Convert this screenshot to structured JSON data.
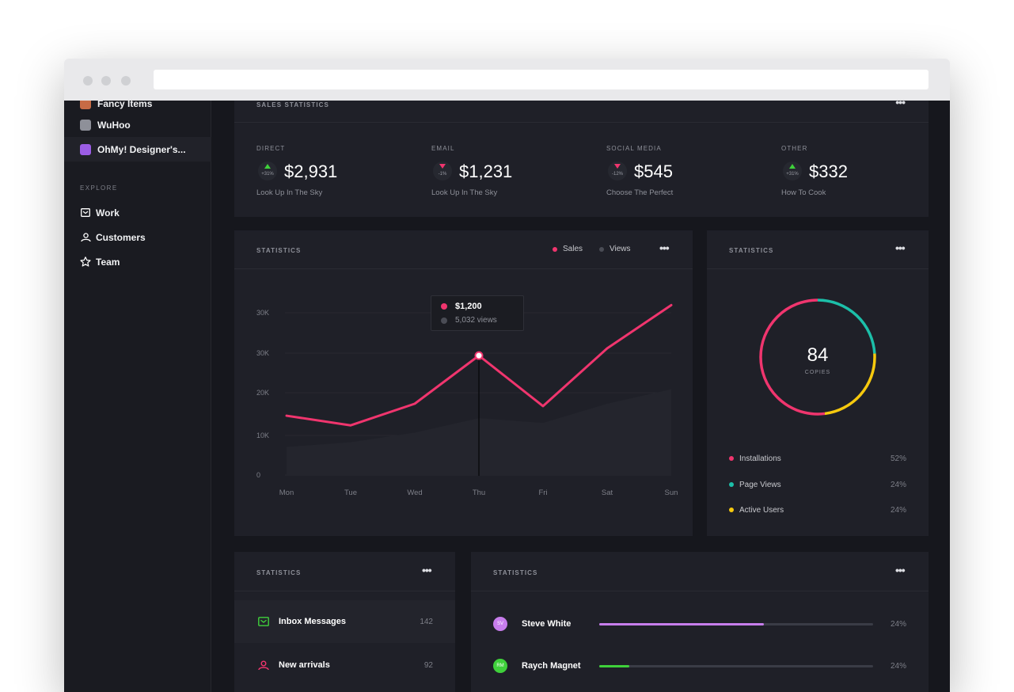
{
  "sidebar": {
    "items": [
      {
        "label": "Fancy Items",
        "logo_color": "#c76b45"
      },
      {
        "label": "WuHoo",
        "logo_color": "#8e9099"
      },
      {
        "label": "OhMy! Designer's...",
        "logo_color": "#9b5de5"
      }
    ],
    "explore_heading": "EXPLORE",
    "nav": [
      {
        "label": "Work",
        "icon": "inbox-icon"
      },
      {
        "label": "Customers",
        "icon": "users-icon"
      },
      {
        "label": "Team",
        "icon": "star-icon"
      }
    ]
  },
  "sales_statistics": {
    "title": "SALES STATISTICS",
    "stats": [
      {
        "label": "DIRECT",
        "change": "+31%",
        "direction": "up",
        "value": "$2,931",
        "sub": "Look Up In The Sky"
      },
      {
        "label": "EMAIL",
        "change": "-1%",
        "direction": "down",
        "value": "$1,231",
        "sub": "Look Up In The Sky"
      },
      {
        "label": "SOCIAL MEDIA",
        "change": "-12%",
        "direction": "down",
        "value": "$545",
        "sub": "Choose The Perfect"
      },
      {
        "label": "OTHER",
        "change": "+31%",
        "direction": "up",
        "value": "$332",
        "sub": "How To Cook"
      }
    ]
  },
  "line_card": {
    "title": "STATISTICS",
    "legend": {
      "sales": "Sales",
      "views": "Views"
    },
    "tooltip": {
      "value": "$1,200",
      "views": "5,032 views"
    }
  },
  "chart_data": {
    "type": "line",
    "categories": [
      "Mon",
      "Tue",
      "Wed",
      "Thu",
      "Fri",
      "Sat",
      "Sun"
    ],
    "y_tick_labels": [
      "30K",
      "30K",
      "20K",
      "10K",
      "0"
    ],
    "series": [
      {
        "name": "Sales",
        "color": "#f0356e",
        "values": [
          12500,
          10500,
          15000,
          25000,
          14500,
          26500,
          35500
        ]
      },
      {
        "name": "Views",
        "color": "#4a4c55",
        "values": [
          6000,
          7000,
          9000,
          12000,
          11000,
          15000,
          18000
        ]
      }
    ],
    "ylim": [
      0,
      40000
    ],
    "highlight_index": 3
  },
  "donut_card": {
    "title": "STATISTICS",
    "center_value": "84",
    "center_label": "COPIES",
    "segments": [
      {
        "label": "Installations",
        "pct": "52%",
        "value": 52,
        "color": "#f0356e"
      },
      {
        "label": "Page Views",
        "pct": "24%",
        "value": 24,
        "color": "#1cbfa9"
      },
      {
        "label": "Active Users",
        "pct": "24%",
        "value": 24,
        "color": "#f6c90e"
      }
    ]
  },
  "list_card": {
    "title": "STATISTICS",
    "items": [
      {
        "label": "Inbox Messages",
        "count": "142",
        "icon": "inbox-icon",
        "color": "#3fd13b"
      },
      {
        "label": "New arrivals",
        "count": "92",
        "icon": "users-icon",
        "color": "#f0356e"
      }
    ]
  },
  "people_card": {
    "title": "STATISTICS",
    "people": [
      {
        "initials": "SV",
        "name": "Steve White",
        "pct": "24%",
        "progress": 0.6,
        "color": "#c77dec"
      },
      {
        "initials": "RM",
        "name": "Raych Magnet",
        "pct": "24%",
        "progress": 0.11,
        "color": "#3fd13b"
      }
    ]
  }
}
